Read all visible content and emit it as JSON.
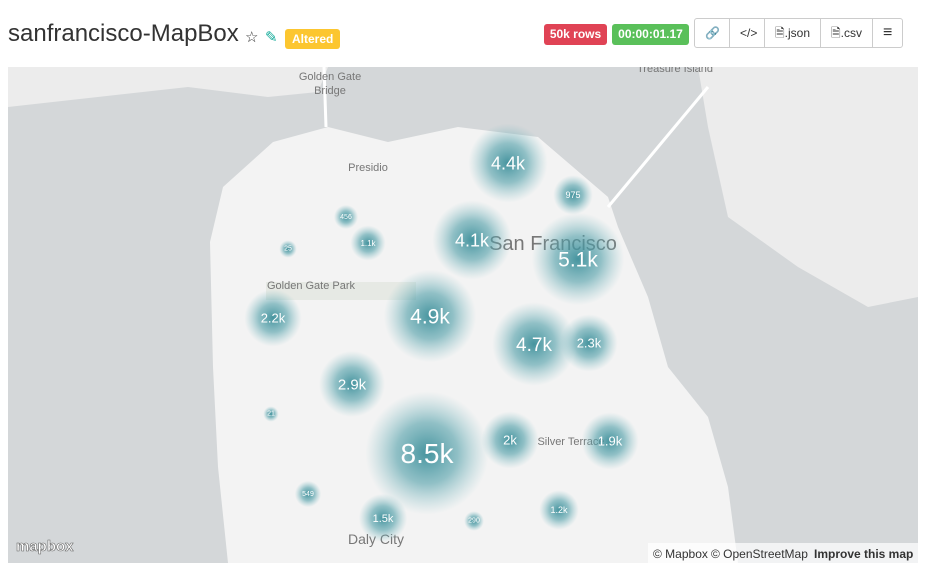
{
  "header": {
    "title": "sanfrancisco-MapBox",
    "badge": "Altered",
    "row_count": "50k rows",
    "timer": "00:00:01.17",
    "buttons": {
      "json": ".json",
      "csv": ".csv"
    }
  },
  "map": {
    "places": [
      "Golden Gate",
      "Bridge",
      "Treasure Island",
      "Presidio",
      "San Francisco",
      "Golden Gate Park",
      "Silver Terrace",
      "Daly City"
    ],
    "clusters": [
      {
        "label": "4.4k"
      },
      {
        "label": "975"
      },
      {
        "label": "456"
      },
      {
        "label": "1.1k"
      },
      {
        "label": "25"
      },
      {
        "label": "4.1k"
      },
      {
        "label": "5.1k"
      },
      {
        "label": "2.2k"
      },
      {
        "label": "4.9k"
      },
      {
        "label": "4.7k"
      },
      {
        "label": "2.3k"
      },
      {
        "label": "2.9k"
      },
      {
        "label": "21"
      },
      {
        "label": "8.5k"
      },
      {
        "label": "2k"
      },
      {
        "label": "1.9k"
      },
      {
        "label": "549"
      },
      {
        "label": "1.5k"
      },
      {
        "label": "290"
      },
      {
        "label": "1.2k"
      }
    ],
    "logo": "mapbox",
    "attribution": [
      "© Mapbox",
      "© OpenStreetMap",
      "Improve this map"
    ]
  }
}
